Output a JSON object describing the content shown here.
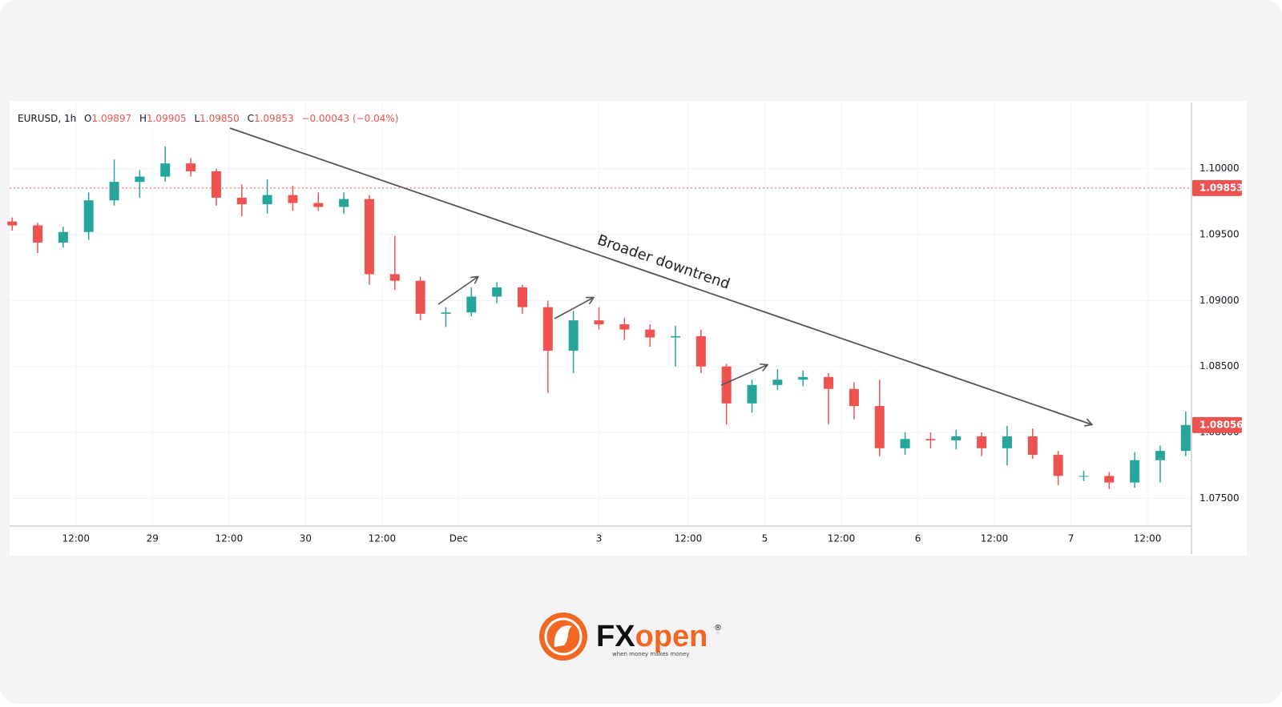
{
  "chart_data": {
    "type": "candlestick",
    "symbol": "EURUSD, 1h",
    "ohlc_header": {
      "o_label": "O",
      "o": "1.09897",
      "h_label": "H",
      "h": "1.09905",
      "l_label": "L",
      "l": "1.09850",
      "c_label": "C",
      "c": "1.09853",
      "change": "−0.00043 (−0.04%)"
    },
    "annotation": "Broader downtrend",
    "up_color": "#26a69a",
    "down_color": "#ef5350",
    "grid": true,
    "x": [
      2,
      6,
      10,
      14,
      18,
      22,
      26,
      30,
      34,
      38,
      42,
      46,
      50,
      54,
      58,
      62,
      66,
      70,
      74,
      78,
      82,
      86,
      90,
      94,
      98,
      102,
      106,
      110,
      114,
      118,
      122,
      126,
      130,
      134,
      138,
      142,
      146,
      150,
      154,
      158,
      162,
      166,
      170,
      174,
      178,
      182,
      186
    ],
    "open": [
      1.096,
      1.0957,
      1.0944,
      1.0952,
      1.0976,
      1.099,
      1.0994,
      1.1004,
      1.0998,
      1.0978,
      1.0973,
      1.098,
      1.0974,
      1.0971,
      1.0977,
      1.092,
      1.0915,
      1.089,
      1.0891,
      1.0903,
      1.091,
      1.0895,
      1.0862,
      1.0885,
      1.0882,
      1.0878,
      1.0872,
      1.0873,
      1.085,
      1.0822,
      1.0836,
      1.084,
      1.0842,
      1.0833,
      1.082,
      1.0788,
      1.0795,
      1.0794,
      1.0797,
      1.0788,
      1.0797,
      1.0783,
      1.0767,
      1.0767,
      1.0762,
      1.0779,
      1.0786
    ],
    "high": [
      1.0963,
      1.0959,
      1.0956,
      1.0982,
      1.1007,
      1.0999,
      1.1017,
      1.1008,
      1.1,
      1.0988,
      1.0992,
      1.0987,
      1.0982,
      1.0982,
      1.098,
      1.0949,
      1.0918,
      1.0895,
      1.091,
      1.0914,
      1.0912,
      1.09,
      1.0892,
      1.0895,
      1.0887,
      1.0882,
      1.0881,
      1.0878,
      1.0852,
      1.084,
      1.0848,
      1.0847,
      1.0845,
      1.0838,
      1.084,
      1.08,
      1.08,
      1.0802,
      1.08,
      1.0805,
      1.0803,
      1.0786,
      1.0771,
      1.077,
      1.0785,
      1.079,
      1.0816
    ],
    "low": [
      1.0953,
      1.0936,
      1.094,
      1.0946,
      1.0972,
      1.0978,
      1.099,
      1.0994,
      1.0972,
      1.0964,
      1.0966,
      1.0968,
      1.0968,
      1.0966,
      1.0912,
      1.0908,
      1.0885,
      1.088,
      1.0888,
      1.0898,
      1.089,
      1.083,
      1.0845,
      1.0878,
      1.087,
      1.0865,
      1.085,
      1.0845,
      1.0806,
      1.0815,
      1.0832,
      1.0835,
      1.0806,
      1.081,
      1.0782,
      1.0783,
      1.0788,
      1.0787,
      1.0782,
      1.0775,
      1.078,
      1.076,
      1.0763,
      1.0757,
      1.0758,
      1.0762,
      1.0782
    ],
    "close": [
      1.0957,
      1.0944,
      1.0952,
      1.0976,
      1.099,
      1.0994,
      1.1004,
      1.0998,
      1.0978,
      1.0973,
      1.098,
      1.0974,
      1.0971,
      1.0977,
      1.092,
      1.0915,
      1.089,
      1.0891,
      1.0903,
      1.091,
      1.0895,
      1.0862,
      1.0885,
      1.0882,
      1.0878,
      1.0872,
      1.0873,
      1.085,
      1.0822,
      1.0836,
      1.084,
      1.0842,
      1.0833,
      1.082,
      1.0788,
      1.0795,
      1.0794,
      1.0797,
      1.0788,
      1.0797,
      1.0783,
      1.0767,
      1.0767,
      1.0762,
      1.0779,
      1.0786,
      1.08056
    ],
    "xlim": [
      1.6,
      186.9
    ],
    "xticks": [
      {
        "value": 12,
        "label": "12:00"
      },
      {
        "value": 24,
        "label": "29"
      },
      {
        "value": 36,
        "label": "12:00"
      },
      {
        "value": 48,
        "label": "30"
      },
      {
        "value": 60,
        "label": "12:00"
      },
      {
        "value": 72,
        "label": "Dec"
      },
      {
        "value": 94,
        "label": "3"
      },
      {
        "value": 108,
        "label": "12:00"
      },
      {
        "value": 120,
        "label": "5"
      },
      {
        "value": 132,
        "label": "12:00"
      },
      {
        "value": 144,
        "label": "6"
      },
      {
        "value": 156,
        "label": "12:00"
      },
      {
        "value": 168,
        "label": "7"
      },
      {
        "value": 180,
        "label": "12:00"
      }
    ],
    "ylim": [
      1.0729,
      1.1049
    ],
    "yticks": [
      {
        "value": 1.075,
        "label": "1.07500"
      },
      {
        "value": 1.08,
        "label": "1.08000"
      },
      {
        "value": 1.085,
        "label": "1.08500"
      },
      {
        "value": 1.09,
        "label": "1.09000"
      },
      {
        "value": 1.095,
        "label": "1.09500"
      },
      {
        "value": 1.1,
        "label": "1.10000"
      }
    ],
    "price_lines": [
      {
        "value": 1.09853,
        "color": "#ef5350",
        "dotted": true
      },
      {
        "value": 1.08056,
        "color": "#ef5350",
        "dotted": false
      }
    ]
  },
  "brand": {
    "name_dark": "FX",
    "name_accent": "open",
    "registered": "®",
    "tagline": "when money makes money"
  }
}
